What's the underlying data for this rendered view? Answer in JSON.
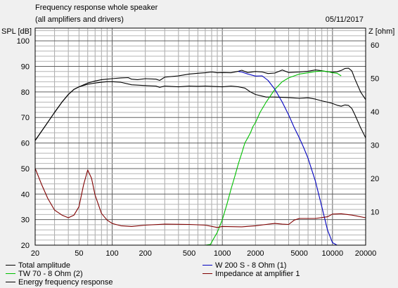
{
  "header": {
    "title": "Frequency response whole speaker",
    "subtitle": "(all amplifiers and drivers)",
    "date": "05/11/2017"
  },
  "chart_data": {
    "type": "line",
    "xscale": "log",
    "xlim": [
      20,
      20000
    ],
    "ylim_left": [
      20,
      105
    ],
    "ylim_right": [
      0,
      65
    ],
    "ylabel_left": "SPL [dB]",
    "ylabel_right": "Z [ohm]",
    "x_ticks": [
      20,
      50,
      100,
      200,
      500,
      1000,
      2000,
      5000,
      10000,
      20000
    ],
    "x_tick_labels": [
      "20",
      "50",
      "100",
      "200",
      "500",
      "1000",
      "2000",
      "5000",
      "10000",
      "20000"
    ],
    "y_left_ticks": [
      20,
      30,
      40,
      50,
      60,
      70,
      80,
      90,
      100
    ],
    "y_left_tick_labels": [
      "20",
      "30",
      "40",
      "50",
      "60",
      "70",
      "80",
      "90",
      "100"
    ],
    "y_right_ticks": [
      10,
      20,
      30,
      40,
      50,
      60
    ],
    "y_right_tick_labels": [
      "10",
      "20",
      "30",
      "40",
      "50",
      "60"
    ],
    "grid": true,
    "series": [
      {
        "name": "Total amplitude",
        "color": "#000000",
        "axis": "left",
        "points": [
          [
            20,
            61
          ],
          [
            25,
            67
          ],
          [
            30,
            72
          ],
          [
            35,
            76
          ],
          [
            40,
            79
          ],
          [
            45,
            81
          ],
          [
            50,
            82
          ],
          [
            60,
            83.5
          ],
          [
            70,
            84.3
          ],
          [
            80,
            84.8
          ],
          [
            90,
            85
          ],
          [
            100,
            85.2
          ],
          [
            120,
            85.5
          ],
          [
            140,
            85.6
          ],
          [
            150,
            85
          ],
          [
            170,
            84.8
          ],
          [
            200,
            85.2
          ],
          [
            250,
            85
          ],
          [
            270,
            84.5
          ],
          [
            300,
            85.8
          ],
          [
            400,
            86.3
          ],
          [
            500,
            87
          ],
          [
            600,
            87.3
          ],
          [
            700,
            87.5
          ],
          [
            800,
            87.8
          ],
          [
            900,
            87.5
          ],
          [
            1000,
            87.6
          ],
          [
            1200,
            87.5
          ],
          [
            1400,
            88.1
          ],
          [
            1500,
            88.5
          ],
          [
            1700,
            87.6
          ],
          [
            2000,
            88
          ],
          [
            2300,
            87.8
          ],
          [
            2600,
            87.2
          ],
          [
            3000,
            87.4
          ],
          [
            3500,
            88.6
          ],
          [
            4000,
            87.6
          ],
          [
            5000,
            87.8
          ],
          [
            6000,
            88.1
          ],
          [
            7000,
            88.6
          ],
          [
            8000,
            88.3
          ],
          [
            9000,
            87.9
          ],
          [
            10000,
            87.8
          ],
          [
            11000,
            87.9
          ],
          [
            12000,
            88.4
          ],
          [
            13000,
            89.2
          ],
          [
            14000,
            89.3
          ],
          [
            15000,
            88.2
          ],
          [
            16000,
            85
          ],
          [
            18000,
            80
          ],
          [
            20000,
            77
          ]
        ]
      },
      {
        "name": "Energy frequency response",
        "color": "#000000",
        "axis": "left",
        "points": [
          [
            20,
            61
          ],
          [
            25,
            67
          ],
          [
            30,
            72
          ],
          [
            35,
            76
          ],
          [
            40,
            79
          ],
          [
            45,
            81
          ],
          [
            50,
            82
          ],
          [
            60,
            83
          ],
          [
            70,
            83.5
          ],
          [
            80,
            83.8
          ],
          [
            90,
            84
          ],
          [
            100,
            84
          ],
          [
            120,
            83.8
          ],
          [
            150,
            82.8
          ],
          [
            200,
            82.5
          ],
          [
            250,
            82.3
          ],
          [
            270,
            81.8
          ],
          [
            300,
            82.3
          ],
          [
            400,
            82
          ],
          [
            500,
            82.3
          ],
          [
            600,
            82.2
          ],
          [
            700,
            82.3
          ],
          [
            800,
            82.2
          ],
          [
            1000,
            82
          ],
          [
            1200,
            82.3
          ],
          [
            1400,
            82
          ],
          [
            1600,
            81.5
          ],
          [
            1800,
            80
          ],
          [
            2000,
            79
          ],
          [
            2500,
            78
          ],
          [
            3000,
            78
          ],
          [
            4000,
            77.8
          ],
          [
            5000,
            77.5
          ],
          [
            6000,
            77.7
          ],
          [
            7000,
            77.2
          ],
          [
            8000,
            76.5
          ],
          [
            9000,
            76
          ],
          [
            10000,
            75.5
          ],
          [
            11000,
            74.8
          ],
          [
            12000,
            74.4
          ],
          [
            13000,
            74.9
          ],
          [
            14000,
            74.7
          ],
          [
            15000,
            73.5
          ],
          [
            16000,
            71
          ],
          [
            18000,
            66
          ],
          [
            20000,
            62
          ]
        ]
      },
      {
        "name": "TW 70 - 8 Ohm (2)",
        "color": "#00c000",
        "axis": "left",
        "points": [
          [
            20,
            20
          ],
          [
            700,
            20
          ],
          [
            780,
            20.3
          ],
          [
            820,
            22
          ],
          [
            900,
            25
          ],
          [
            1000,
            30
          ],
          [
            1100,
            36
          ],
          [
            1200,
            42
          ],
          [
            1300,
            47
          ],
          [
            1400,
            52
          ],
          [
            1500,
            56
          ],
          [
            1600,
            60
          ],
          [
            1700,
            62
          ],
          [
            1800,
            64
          ],
          [
            1900,
            66.5
          ],
          [
            2000,
            68
          ],
          [
            2200,
            72
          ],
          [
            2500,
            76
          ],
          [
            3000,
            81
          ],
          [
            3500,
            84
          ],
          [
            4000,
            85.5
          ],
          [
            5000,
            87
          ],
          [
            6000,
            87.5
          ],
          [
            7000,
            88
          ],
          [
            8000,
            88.2
          ],
          [
            9000,
            88
          ],
          [
            10000,
            87.5
          ],
          [
            11000,
            87.3
          ],
          [
            12000,
            86.3
          ]
        ]
      },
      {
        "name": "W 200 S - 8 Ohm (1)",
        "color": "#0000c0",
        "axis": "left",
        "points": [
          [
            1400,
            88
          ],
          [
            1500,
            87.8
          ],
          [
            1700,
            87
          ],
          [
            2000,
            86.2
          ],
          [
            2300,
            86.3
          ],
          [
            2600,
            84.5
          ],
          [
            3000,
            81
          ],
          [
            3500,
            76
          ],
          [
            4000,
            71
          ],
          [
            4500,
            66
          ],
          [
            5000,
            62
          ],
          [
            5500,
            58
          ],
          [
            6000,
            54
          ],
          [
            7000,
            45
          ],
          [
            8000,
            35
          ],
          [
            9000,
            26
          ],
          [
            10000,
            21
          ],
          [
            11000,
            20
          ],
          [
            20000,
            20
          ]
        ]
      },
      {
        "name": "Impedance at amplifier 1",
        "color": "#800000",
        "axis": "right",
        "points": [
          [
            20,
            23
          ],
          [
            23,
            18
          ],
          [
            26,
            14
          ],
          [
            30,
            10.5
          ],
          [
            35,
            9
          ],
          [
            40,
            8.2
          ],
          [
            45,
            9
          ],
          [
            50,
            11.5
          ],
          [
            55,
            18
          ],
          [
            60,
            22.5
          ],
          [
            65,
            20
          ],
          [
            70,
            15
          ],
          [
            80,
            9.5
          ],
          [
            90,
            7.5
          ],
          [
            100,
            6.5
          ],
          [
            120,
            5.8
          ],
          [
            150,
            5.6
          ],
          [
            200,
            6
          ],
          [
            300,
            6.3
          ],
          [
            500,
            6.2
          ],
          [
            700,
            6
          ],
          [
            900,
            5.3
          ],
          [
            1000,
            5.6
          ],
          [
            1500,
            5.5
          ],
          [
            2000,
            5.8
          ],
          [
            2500,
            6.2
          ],
          [
            3000,
            6.5
          ],
          [
            3500,
            6.3
          ],
          [
            4000,
            6.2
          ],
          [
            4500,
            7.5
          ],
          [
            5000,
            8
          ],
          [
            7000,
            8
          ],
          [
            9000,
            8.5
          ],
          [
            10000,
            9.3
          ],
          [
            12000,
            9.4
          ],
          [
            15000,
            9
          ],
          [
            20000,
            8.2
          ]
        ]
      }
    ]
  },
  "legend": {
    "items": [
      {
        "label": "Total amplitude",
        "color": "#000000"
      },
      {
        "label": "W 200 S - 8 Ohm (1)",
        "color": "#0000c0"
      },
      {
        "label": "TW 70 - 8 Ohm (2)",
        "color": "#00c000"
      },
      {
        "label": "Impedance at amplifier 1",
        "color": "#800000"
      },
      {
        "label": "Energy frequency response",
        "color": "#000000"
      }
    ]
  }
}
